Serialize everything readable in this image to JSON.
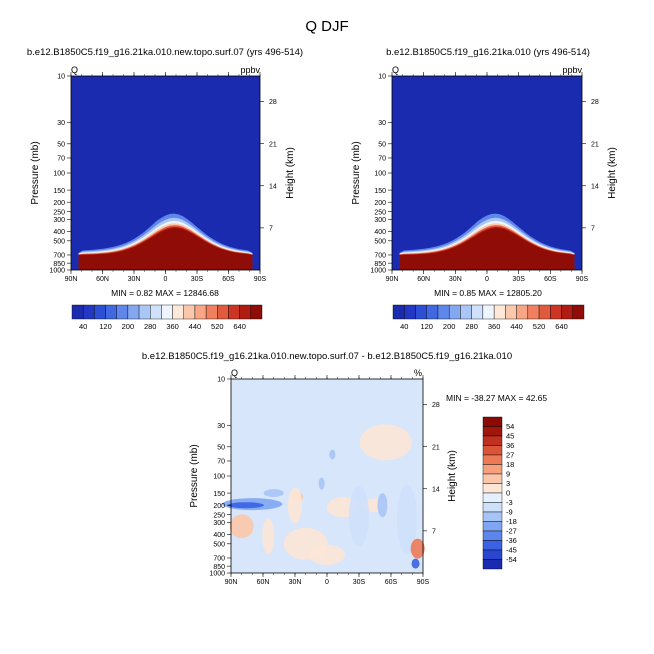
{
  "main_title": "Q DJF",
  "colors": {
    "ctrl_levels": [
      "#1b2bb0",
      "#2238c4",
      "#2d4fd6",
      "#4168e0",
      "#5f86ea",
      "#84a7f2",
      "#a9c6f7",
      "#cfe1fb",
      "#eef5ff",
      "#fde8da",
      "#fcc8ad",
      "#f8a685",
      "#f0805f",
      "#e25a3d",
      "#cc3524",
      "#b01c12",
      "#8f0d06"
    ],
    "diff_levels": [
      "#1a2bb0",
      "#2a45cf",
      "#3a62e3",
      "#5b86ec",
      "#80a6f3",
      "#a7c4f7",
      "#cfe0fb",
      "#e4efff",
      "#fde6d6",
      "#fbc6a9",
      "#f6a07d",
      "#ec7a57",
      "#da5437",
      "#c0301f",
      "#9e160c",
      "#8c0a05"
    ]
  },
  "chart_data": [
    {
      "type": "heatmap",
      "title": "b.e12.B1850C5.f19_g16.21ka.010.new.topo.surf.07 (yrs 496-514)",
      "left_label": "Q",
      "right_label": "ppbv",
      "ylabel": "Pressure (mb)",
      "y2label": "Height (km)",
      "x_ticks": [
        "90N",
        "60N",
        "30N",
        "0",
        "30S",
        "60S",
        "90S"
      ],
      "y_ticks": [
        "10",
        "30",
        "50",
        "70",
        "100",
        "150",
        "200",
        "250",
        "300",
        "400",
        "500",
        "700",
        "850",
        "1000"
      ],
      "y2_ticks": [
        "28",
        "21",
        "14",
        "7"
      ],
      "ylim": [
        1000,
        10
      ],
      "min_text": "MIN =   0.82   MAX = 12846.68",
      "colorbar_labels": [
        "40",
        "120",
        "200",
        "280",
        "360",
        "440",
        "520",
        "640"
      ],
      "peak_level_mb": 400
    },
    {
      "type": "heatmap",
      "title": "b.e12.B1850C5.f19_g16.21ka.010 (yrs 496-514)",
      "left_label": "Q",
      "right_label": "ppbv",
      "ylabel": "Pressure (mb)",
      "y2label": "Height (km)",
      "x_ticks": [
        "90N",
        "60N",
        "30N",
        "0",
        "30S",
        "60S",
        "90S"
      ],
      "y_ticks": [
        "10",
        "30",
        "50",
        "70",
        "100",
        "150",
        "200",
        "250",
        "300",
        "400",
        "500",
        "700",
        "850",
        "1000"
      ],
      "y2_ticks": [
        "28",
        "21",
        "14",
        "7"
      ],
      "ylim": [
        1000,
        10
      ],
      "min_text": "MIN =   0.85   MAX = 12805.20",
      "colorbar_labels": [
        "40",
        "120",
        "200",
        "280",
        "360",
        "440",
        "520",
        "640"
      ],
      "peak_level_mb": 400
    },
    {
      "type": "heatmap",
      "title": "b.e12.B1850C5.f19_g16.21ka.010.new.topo.surf.07 - b.e12.B1850C5.f19_g16.21ka.010",
      "left_label": "Q",
      "right_label": "%",
      "ylabel": "Pressure (mb)",
      "y2label": "Height (km)",
      "x_ticks": [
        "90N",
        "60N",
        "30N",
        "0",
        "30S",
        "60S",
        "90S"
      ],
      "y_ticks": [
        "10",
        "30",
        "50",
        "70",
        "100",
        "150",
        "200",
        "250",
        "300",
        "400",
        "500",
        "700",
        "850",
        "1000"
      ],
      "y2_ticks": [
        "28",
        "21",
        "14",
        "7"
      ],
      "ylim": [
        1000,
        10
      ],
      "min_text": "MIN = -38.27   MAX =  42.65",
      "colorbar_labels": [
        "54",
        "45",
        "36",
        "27",
        "18",
        "9",
        "3",
        "0",
        "-3",
        "-9",
        "-18",
        "-27",
        "-36",
        "-45",
        "-54"
      ]
    }
  ]
}
